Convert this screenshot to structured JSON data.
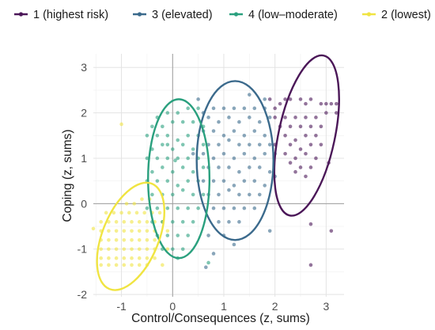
{
  "chart_data": {
    "type": "scatter",
    "title": "",
    "xlabel": "Control/Consequences (z, sums)",
    "ylabel": "Coping (z, sums)",
    "xlim": [
      -1.55,
      3.35
    ],
    "ylim": [
      -2.05,
      3.3
    ],
    "xticks": [
      -1,
      0,
      1,
      2,
      3
    ],
    "yticks": [
      -2,
      -1,
      0,
      1,
      2,
      3
    ],
    "grid": true,
    "zero_lines": true,
    "legend_position": "top",
    "series": [
      {
        "name": "1 (highest risk)",
        "color": "#4b1758",
        "ellipse": {
          "center": [
            2.62,
            1.5
          ],
          "radii": [
            0.55,
            1.8
          ],
          "angle_deg": 12
        },
        "points": [
          [
            1.9,
            2.3
          ],
          [
            2.0,
            2.1
          ],
          [
            2.1,
            2.2
          ],
          [
            2.2,
            2.3
          ],
          [
            2.3,
            2.3
          ],
          [
            2.5,
            2.3
          ],
          [
            2.6,
            2.2
          ],
          [
            2.7,
            2.3
          ],
          [
            2.9,
            2.2
          ],
          [
            3.0,
            2.2
          ],
          [
            3.1,
            2.2
          ],
          [
            3.2,
            2.2
          ],
          [
            3.0,
            2.0
          ],
          [
            3.2,
            2.0
          ],
          [
            2.0,
            1.9
          ],
          [
            2.2,
            1.9
          ],
          [
            2.4,
            1.9
          ],
          [
            2.6,
            1.9
          ],
          [
            2.8,
            1.9
          ],
          [
            2.1,
            1.7
          ],
          [
            2.3,
            1.7
          ],
          [
            2.5,
            1.7
          ],
          [
            2.7,
            1.7
          ],
          [
            2.9,
            1.7
          ],
          [
            2.2,
            1.5
          ],
          [
            2.4,
            1.4
          ],
          [
            2.6,
            1.5
          ],
          [
            2.8,
            1.5
          ],
          [
            2.0,
            1.3
          ],
          [
            2.3,
            1.3
          ],
          [
            2.5,
            1.2
          ],
          [
            2.7,
            1.3
          ],
          [
            2.9,
            1.3
          ],
          [
            2.2,
            1.1
          ],
          [
            2.4,
            1.0
          ],
          [
            2.6,
            1.1
          ],
          [
            2.8,
            1.0
          ],
          [
            2.3,
            0.9
          ],
          [
            2.5,
            0.8
          ],
          [
            2.7,
            0.8
          ],
          [
            2.4,
            0.7
          ],
          [
            2.6,
            0.6
          ],
          [
            3.05,
            0.9
          ],
          [
            2.7,
            -0.45
          ],
          [
            3.1,
            -0.6
          ],
          [
            2.7,
            -1.35
          ]
        ]
      },
      {
        "name": "3 (elevated)",
        "color": "#3b6a8c",
        "ellipse": {
          "center": [
            1.22,
            0.95
          ],
          "radii": [
            0.75,
            1.75
          ],
          "angle_deg": 0
        },
        "points": [
          [
            0.6,
            2.0
          ],
          [
            0.8,
            2.1
          ],
          [
            1.0,
            2.1
          ],
          [
            1.2,
            2.1
          ],
          [
            1.4,
            2.1
          ],
          [
            1.6,
            2.1
          ],
          [
            1.8,
            2.1
          ],
          [
            0.7,
            1.9
          ],
          [
            0.9,
            1.8
          ],
          [
            1.1,
            1.9
          ],
          [
            1.3,
            1.8
          ],
          [
            1.5,
            1.9
          ],
          [
            1.7,
            1.8
          ],
          [
            1.9,
            1.9
          ],
          [
            0.6,
            1.6
          ],
          [
            0.8,
            1.6
          ],
          [
            1.0,
            1.5
          ],
          [
            1.2,
            1.6
          ],
          [
            1.4,
            1.5
          ],
          [
            1.6,
            1.6
          ],
          [
            1.8,
            1.5
          ],
          [
            0.7,
            1.3
          ],
          [
            0.9,
            1.3
          ],
          [
            1.1,
            1.4
          ],
          [
            1.3,
            1.3
          ],
          [
            1.5,
            1.3
          ],
          [
            1.7,
            1.3
          ],
          [
            1.9,
            1.3
          ],
          [
            0.6,
            1.1
          ],
          [
            0.8,
            1.0
          ],
          [
            1.0,
            1.1
          ],
          [
            1.2,
            1.0
          ],
          [
            1.4,
            1.1
          ],
          [
            1.6,
            1.0
          ],
          [
            1.8,
            1.1
          ],
          [
            0.7,
            0.8
          ],
          [
            0.9,
            0.8
          ],
          [
            1.1,
            0.8
          ],
          [
            1.3,
            0.7
          ],
          [
            1.5,
            0.8
          ],
          [
            1.7,
            0.8
          ],
          [
            1.9,
            0.7
          ],
          [
            0.6,
            0.5
          ],
          [
            0.8,
            0.5
          ],
          [
            1.0,
            0.5
          ],
          [
            1.2,
            0.4
          ],
          [
            1.4,
            0.5
          ],
          [
            1.6,
            0.5
          ],
          [
            1.8,
            0.4
          ],
          [
            0.7,
            0.2
          ],
          [
            0.9,
            0.2
          ],
          [
            1.1,
            0.3
          ],
          [
            1.3,
            0.2
          ],
          [
            1.5,
            0.2
          ],
          [
            1.7,
            0.2
          ],
          [
            0.8,
            -0.1
          ],
          [
            1.0,
            -0.1
          ],
          [
            1.2,
            -0.1
          ],
          [
            1.4,
            -0.1
          ],
          [
            1.6,
            -0.1
          ],
          [
            0.9,
            -0.4
          ],
          [
            1.1,
            -0.4
          ],
          [
            1.3,
            -0.4
          ],
          [
            0.7,
            -0.7
          ],
          [
            1.0,
            -0.7
          ],
          [
            1.2,
            -0.9
          ],
          [
            0.8,
            -1.1
          ],
          [
            0.65,
            -1.4
          ],
          [
            1.8,
            2.3
          ],
          [
            1.5,
            2.4
          ],
          [
            2.0,
            1.1
          ],
          [
            2.0,
            0.6
          ],
          [
            1.9,
            -0.6
          ],
          [
            0.5,
            2.3
          ],
          [
            0.4,
            1.1
          ]
        ]
      },
      {
        "name": "4 (low–moderate)",
        "color": "#2aa07e",
        "ellipse": {
          "center": [
            0.12,
            0.55
          ],
          "radii": [
            0.6,
            1.75
          ],
          "angle_deg": 0
        },
        "points": [
          [
            -0.3,
            1.9
          ],
          [
            -0.1,
            2.0
          ],
          [
            0.1,
            2.0
          ],
          [
            0.3,
            2.1
          ],
          [
            0.5,
            2.1
          ],
          [
            -0.4,
            1.7
          ],
          [
            -0.2,
            1.7
          ],
          [
            0.0,
            1.8
          ],
          [
            0.2,
            1.8
          ],
          [
            0.4,
            1.8
          ],
          [
            0.6,
            1.7
          ],
          [
            -0.5,
            1.5
          ],
          [
            -0.3,
            1.5
          ],
          [
            -0.1,
            1.5
          ],
          [
            0.1,
            1.4
          ],
          [
            0.3,
            1.5
          ],
          [
            0.5,
            1.5
          ],
          [
            -0.4,
            1.2
          ],
          [
            -0.2,
            1.3
          ],
          [
            0.0,
            1.2
          ],
          [
            0.2,
            1.3
          ],
          [
            0.4,
            1.2
          ],
          [
            0.6,
            1.3
          ],
          [
            -0.5,
            1.0
          ],
          [
            -0.3,
            1.0
          ],
          [
            -0.1,
            1.0
          ],
          [
            0.1,
            1.0
          ],
          [
            0.3,
            1.0
          ],
          [
            0.5,
            1.0
          ],
          [
            -0.4,
            0.7
          ],
          [
            -0.2,
            0.8
          ],
          [
            0.0,
            0.7
          ],
          [
            0.2,
            0.8
          ],
          [
            0.4,
            0.7
          ],
          [
            0.6,
            0.8
          ],
          [
            -0.5,
            0.5
          ],
          [
            -0.3,
            0.5
          ],
          [
            -0.1,
            0.5
          ],
          [
            0.1,
            0.4
          ],
          [
            0.3,
            0.5
          ],
          [
            0.5,
            0.5
          ],
          [
            -0.4,
            0.2
          ],
          [
            -0.2,
            0.2
          ],
          [
            0.0,
            0.2
          ],
          [
            0.2,
            0.3
          ],
          [
            0.4,
            0.2
          ],
          [
            0.6,
            0.2
          ],
          [
            -0.5,
            -0.1
          ],
          [
            -0.3,
            -0.1
          ],
          [
            -0.1,
            -0.1
          ],
          [
            0.1,
            -0.1
          ],
          [
            0.3,
            -0.1
          ],
          [
            0.5,
            -0.1
          ],
          [
            -0.4,
            -0.4
          ],
          [
            -0.2,
            -0.4
          ],
          [
            0.0,
            -0.4
          ],
          [
            0.2,
            -0.4
          ],
          [
            0.4,
            -0.4
          ],
          [
            -0.3,
            -0.7
          ],
          [
            -0.1,
            -0.7
          ],
          [
            0.1,
            -0.7
          ],
          [
            0.3,
            -0.7
          ],
          [
            -0.2,
            -1.0
          ],
          [
            0.0,
            -1.0
          ],
          [
            0.2,
            -1.0
          ],
          [
            0.1,
            -1.2
          ],
          [
            0.7,
            -1.3
          ],
          [
            -0.1,
            1.3
          ],
          [
            0.05,
            0.95
          ]
        ]
      },
      {
        "name": "2 (lowest)",
        "color": "#f0e442",
        "ellipse": {
          "center": [
            -0.82,
            -0.72
          ],
          "radii": [
            0.55,
            1.25
          ],
          "angle_deg": 22
        },
        "points": [
          [
            -1.0,
            1.75
          ],
          [
            -0.9,
            0.0
          ],
          [
            -0.75,
            0.0
          ],
          [
            -0.6,
            0.1
          ],
          [
            -0.45,
            0.1
          ],
          [
            -1.3,
            -0.2
          ],
          [
            -1.15,
            -0.2
          ],
          [
            -1.0,
            -0.2
          ],
          [
            -0.85,
            -0.2
          ],
          [
            -0.7,
            -0.2
          ],
          [
            -0.55,
            -0.2
          ],
          [
            -0.4,
            -0.2
          ],
          [
            -0.25,
            -0.2
          ],
          [
            -1.4,
            -0.4
          ],
          [
            -1.25,
            -0.4
          ],
          [
            -1.1,
            -0.4
          ],
          [
            -0.95,
            -0.4
          ],
          [
            -0.8,
            -0.4
          ],
          [
            -0.65,
            -0.4
          ],
          [
            -0.5,
            -0.4
          ],
          [
            -0.35,
            -0.4
          ],
          [
            -0.2,
            -0.4
          ],
          [
            -1.4,
            -0.6
          ],
          [
            -1.25,
            -0.6
          ],
          [
            -1.1,
            -0.6
          ],
          [
            -0.95,
            -0.6
          ],
          [
            -0.8,
            -0.6
          ],
          [
            -0.65,
            -0.6
          ],
          [
            -0.5,
            -0.6
          ],
          [
            -0.35,
            -0.6
          ],
          [
            -1.4,
            -0.8
          ],
          [
            -1.25,
            -0.8
          ],
          [
            -1.1,
            -0.8
          ],
          [
            -0.95,
            -0.8
          ],
          [
            -0.8,
            -0.8
          ],
          [
            -0.65,
            -0.8
          ],
          [
            -0.5,
            -0.8
          ],
          [
            -0.35,
            -0.8
          ],
          [
            -1.4,
            -1.0
          ],
          [
            -1.25,
            -1.0
          ],
          [
            -1.1,
            -1.0
          ],
          [
            -0.95,
            -1.0
          ],
          [
            -0.8,
            -1.0
          ],
          [
            -0.65,
            -1.0
          ],
          [
            -0.5,
            -1.0
          ],
          [
            -0.35,
            -1.0
          ],
          [
            -1.4,
            -1.2
          ],
          [
            -1.25,
            -1.2
          ],
          [
            -1.1,
            -1.2
          ],
          [
            -0.95,
            -1.2
          ],
          [
            -0.8,
            -1.2
          ],
          [
            -0.65,
            -1.2
          ],
          [
            -0.5,
            -1.2
          ],
          [
            -0.35,
            -1.2
          ],
          [
            -1.4,
            -1.35
          ],
          [
            -1.25,
            -1.35
          ],
          [
            -1.1,
            -1.35
          ],
          [
            -0.95,
            -1.35
          ],
          [
            -0.8,
            -1.35
          ],
          [
            -0.65,
            -1.35
          ],
          [
            -0.5,
            -1.35
          ],
          [
            -0.2,
            -1.35
          ],
          [
            -0.1,
            -1.0
          ],
          [
            -0.1,
            -0.6
          ],
          [
            -1.55,
            -0.55
          ]
        ]
      }
    ]
  }
}
